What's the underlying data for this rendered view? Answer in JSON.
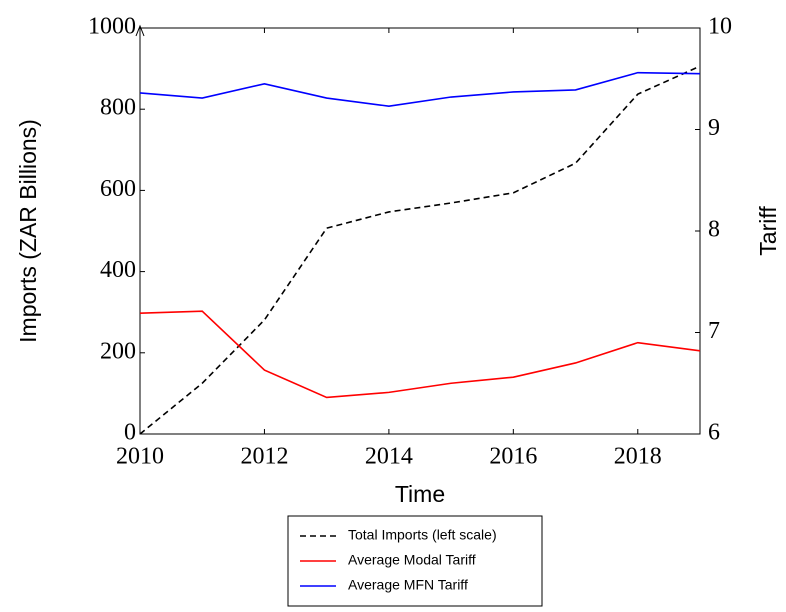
{
  "chart_data": {
    "type": "line",
    "x_label": "Time",
    "y_label": "Imports (ZAR Billions)",
    "y2_label": "Tariff",
    "x": [
      2010,
      2011,
      2012,
      2013,
      2014,
      2015,
      2016,
      2017,
      2018,
      2019
    ],
    "xlim": [
      2010,
      2019
    ],
    "xticks": [
      2010,
      2012,
      2014,
      2016,
      2018
    ],
    "ylim": [
      0,
      1000
    ],
    "yticks": [
      0,
      200,
      400,
      600,
      800,
      1000
    ],
    "y2lim": [
      6,
      10
    ],
    "y2ticks": [
      6,
      7,
      8,
      9,
      10
    ],
    "legend": "bottom",
    "series": [
      {
        "name": "Total Imports (left scale)",
        "color": "#000000",
        "line_style": "dashed",
        "axis": "y",
        "values": [
          0,
          125,
          281,
          507,
          547,
          569,
          594,
          667,
          837,
          906
        ]
      },
      {
        "name": "Average Modal Tariff",
        "color": "#ff0000",
        "line_style": "solid",
        "axis": "y2",
        "values": [
          7.19,
          7.21,
          6.63,
          6.36,
          6.41,
          6.5,
          6.56,
          6.7,
          6.9,
          6.82
        ]
      },
      {
        "name": "Average MFN Tariff",
        "color": "#0000ff",
        "line_style": "solid",
        "axis": "y2",
        "values": [
          9.36,
          9.31,
          9.45,
          9.31,
          9.23,
          9.32,
          9.37,
          9.39,
          9.56,
          9.55
        ]
      }
    ]
  }
}
